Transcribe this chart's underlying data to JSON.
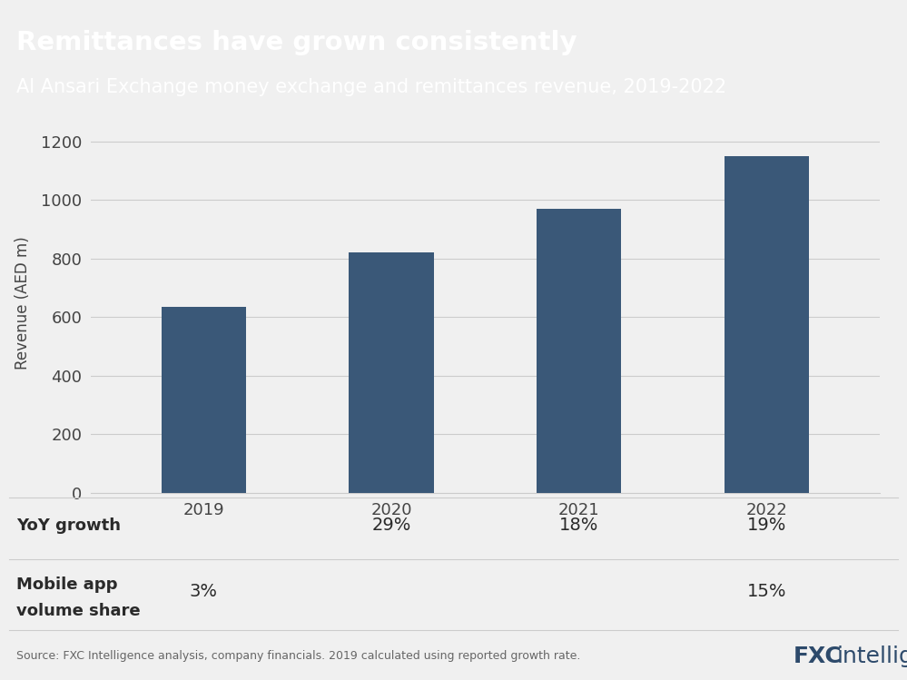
{
  "title": "Remittances have grown consistently",
  "subtitle": "Al Ansari Exchange money exchange and remittances revenue, 2019-2022",
  "years": [
    "2019",
    "2020",
    "2021",
    "2022"
  ],
  "values": [
    635,
    820,
    970,
    1150
  ],
  "bar_color": "#3a5878",
  "header_bg": "#3a5878",
  "header_text_color": "#ffffff",
  "ylabel": "Revenue (AED m)",
  "ylim": [
    0,
    1300
  ],
  "yticks": [
    0,
    200,
    400,
    600,
    800,
    1000,
    1200
  ],
  "yoy_growth": {
    "2019": "",
    "2020": "29%",
    "2021": "18%",
    "2022": "19%"
  },
  "mobile_app": {
    "2019": "3%",
    "2020": "",
    "2021": "",
    "2022": "15%"
  },
  "source": "Source: FXC Intelligence analysis, company financials. 2019 calculated using reported growth rate.",
  "background_color": "#f0f0f0",
  "plot_bg": "#f0f0f0",
  "grid_color": "#cccccc",
  "title_fontsize": 21,
  "subtitle_fontsize": 15,
  "axis_fontsize": 12,
  "tick_fontsize": 13,
  "table_label_fontsize": 13,
  "table_value_fontsize": 14,
  "source_fontsize": 9,
  "logo_fontsize": 18
}
